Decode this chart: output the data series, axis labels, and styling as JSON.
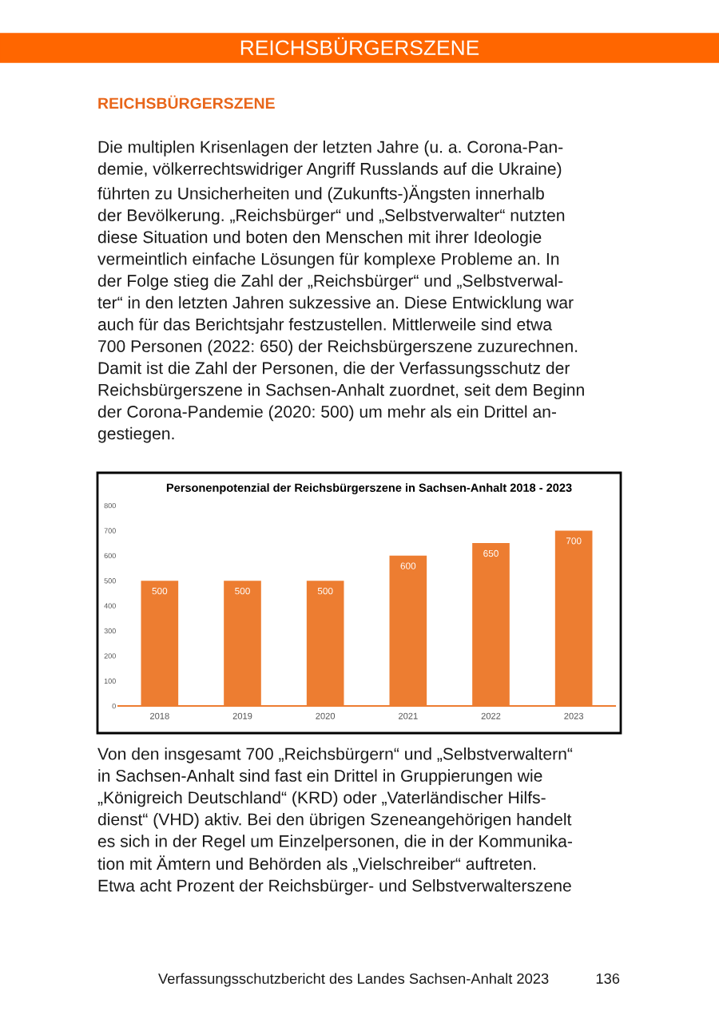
{
  "chart_data": {
    "type": "bar",
    "title": "Personenpotenzial der Reichsbürgerszene in Sachsen-Anhalt 2018 - 2023",
    "categories": [
      "2018",
      "2019",
      "2020",
      "2021",
      "2022",
      "2023"
    ],
    "values": [
      500,
      500,
      500,
      600,
      650,
      700
    ],
    "color": "#ed7d31",
    "ylim": [
      0,
      800
    ],
    "yticks": [
      0,
      100,
      200,
      300,
      400,
      500,
      600,
      700,
      800
    ],
    "grid": false,
    "data_labels": true,
    "annotations": [
      "REICHSBÜRGERSZENE",
      "REICHSBÜRGERSZENE",
      "Die multiplen Krisenlagen der letzten Jahre (u. a. Corona-Pan-\ndemie, völkerrechtswidriger Angriff Russlands auf die Ukraine)\nführten zu Unsicherheiten und (Zukunfts-)Ängsten innerhalb\nder Bevölkerung. „Reichsbürger“ und „Selbstverwalter“ nutzten\ndiese Situation und boten den Menschen mit ihrer Ideologie\nvermeintlich einfache Lösungen für komplexe Probleme an. In\nder Folge stieg die Zahl der „Reichsbürger“ und „Selbstverwal-\nter“ in den letzten Jahren sukzessive an. Diese Entwicklung war\nauch für das Berichtsjahr festzustellen. Mittlerweile sind etwa\n700 Personen (2022: 650) der Reichsbürgerszene zuzurechnen.\nDamit ist die Zahl der Personen, die der Verfassungsschutz der\nReichsbürgerszene in Sachsen-Anhalt zuordnet, seit dem Beginn\nder Corona-Pandemie (2020: 500) um mehr als ein Drittel an-\ngestiegen.",
      "Von den insgesamt 700 „Reichsbürgern“ und „Selbstverwaltern“\nin Sachsen-Anhalt sind fast ein Drittel in Gruppierungen wie\n„Königreich Deutschland“ (KRD) oder „Vaterländischer Hilfs-\ndienst“ (VHD) aktiv. Bei den übrigen Szeneangehörigen handelt\nes sich in der Regel um Einzelpersonen, die in der Kommunika-\ntion mit Ämtern und Behörden als „Vielschreiber“ auftreten.\nEtwa acht Prozent der Reichsbürger- und Selbstverwalterszene",
      "Verfassungsschutzbericht des Landes Sachsen-Anhalt 2023",
      "136"
    ]
  }
}
